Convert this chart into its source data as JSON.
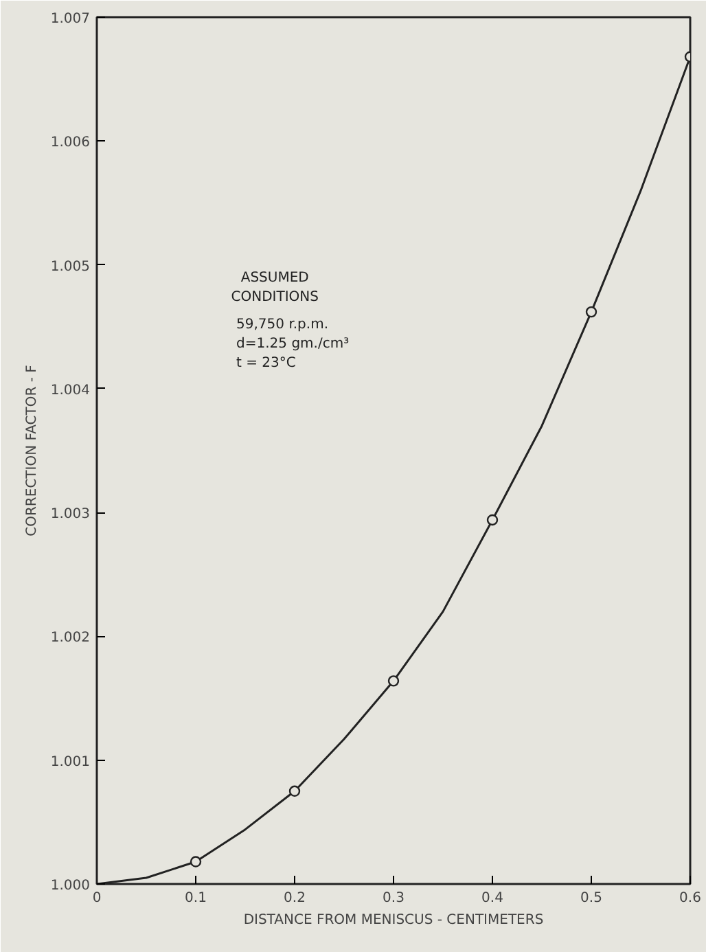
{
  "chart_data": {
    "type": "line",
    "xlabel": "DISTANCE FROM MENISCUS - CENTIMETERS",
    "ylabel": "CORRECTION FACTOR - F",
    "annotations": [
      "ASSUMED",
      "CONDITIONS",
      "59,750 r.p.m.",
      "d=1.25 gm./cm³",
      "t = 23°C"
    ],
    "series": [
      {
        "color": "#222222",
        "marker": "none",
        "x": [
          0,
          0.05,
          0.1,
          0.15,
          0.2,
          0.25,
          0.3,
          0.35,
          0.4,
          0.45,
          0.5,
          0.55,
          0.6
        ],
        "values": [
          1.0,
          1.00005,
          1.00018,
          1.00044,
          1.00075,
          1.00117,
          1.00164,
          1.0022,
          1.00294,
          1.0037,
          1.00462,
          1.0056,
          1.00668
        ]
      },
      {
        "type": "scatter",
        "color": "#222222",
        "marker": "circle",
        "x": [
          0.1,
          0.2,
          0.3,
          0.4,
          0.5,
          0.6
        ],
        "values": [
          1.00018,
          1.00075,
          1.00164,
          1.00294,
          1.00462,
          1.00668
        ]
      }
    ],
    "xlim": [
      0,
      0.6
    ],
    "ylim": [
      1.0,
      1.007
    ],
    "xticks": [
      0,
      0.1,
      0.2,
      0.3,
      0.4,
      0.5,
      0.6
    ],
    "yticks": [
      {
        "value": 1.0,
        "label": "1.000"
      },
      {
        "value": 1.001,
        "label": "1.001"
      },
      {
        "value": 1.002,
        "label": "1.002"
      },
      {
        "value": 1.003,
        "label": "1.003"
      },
      {
        "value": 1.004,
        "label": "1.004"
      },
      {
        "value": 1.005,
        "label": "1.005"
      },
      {
        "value": 1.006,
        "label": "1.006"
      },
      {
        "value": 1.007,
        "label": "1.007"
      }
    ],
    "grid": false
  }
}
